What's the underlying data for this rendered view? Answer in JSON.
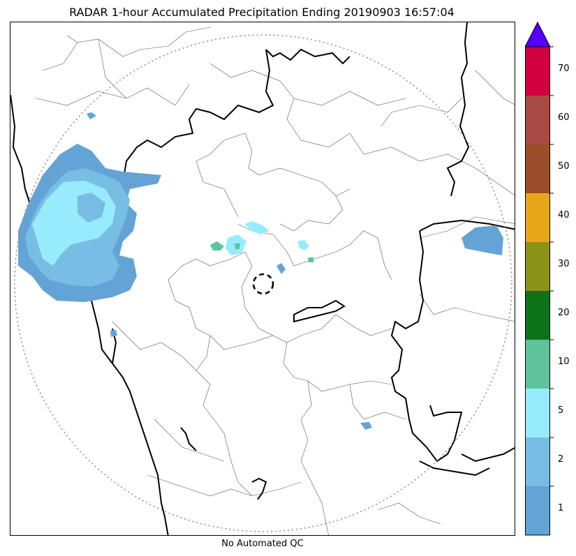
{
  "title": "RADAR 1-hour Accumulated Precipitation Ending 20190903 16:57:04",
  "footer": "No Automated QC",
  "colorbar": {
    "ticks": [
      "1",
      "2",
      "5",
      "10",
      "20",
      "30",
      "40",
      "50",
      "60",
      "70"
    ],
    "colors": [
      "#64a3d6",
      "#78bde3",
      "#96ecfc",
      "#5ec39a",
      "#0d7319",
      "#8a9316",
      "#e7a719",
      "#9b4e28",
      "#a84a43",
      "#d2003f"
    ],
    "extend_color": "#5500ff"
  },
  "map": {
    "range_ring_color": "#888888",
    "border_color": "#000000",
    "district_color": "#555555"
  }
}
